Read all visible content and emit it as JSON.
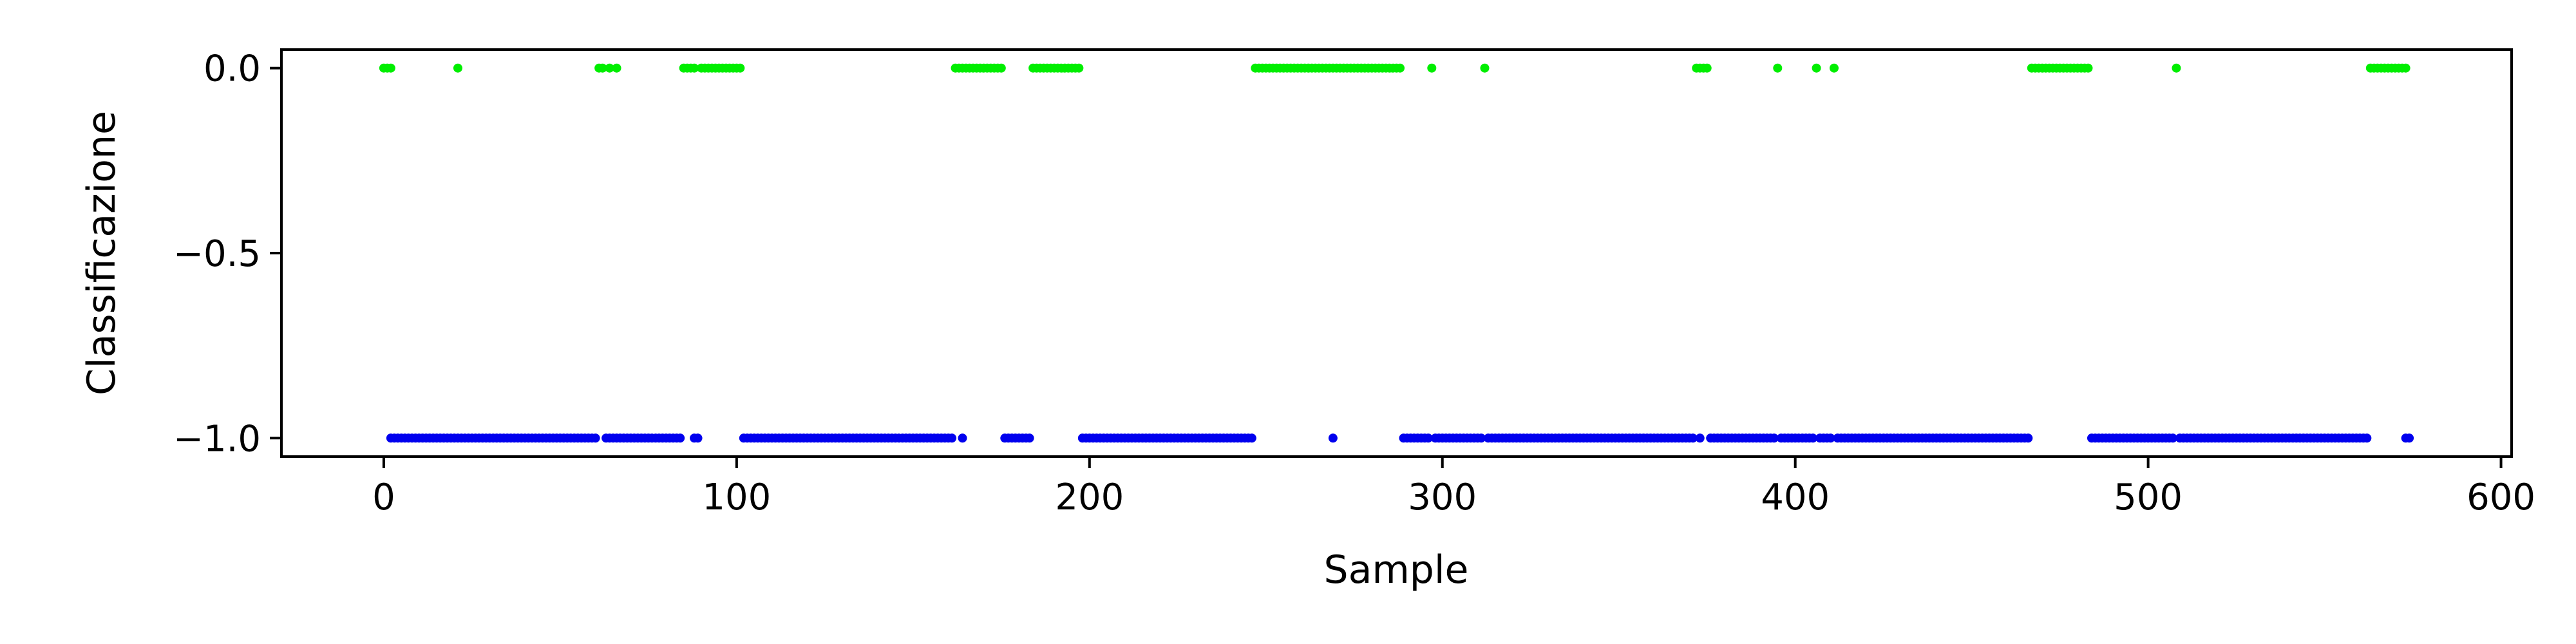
{
  "chart_data": {
    "type": "scatter",
    "title": "",
    "xlabel": "Sample",
    "ylabel": "Classificazione",
    "xlim": [
      -29,
      603
    ],
    "ylim": [
      -1.05,
      0.05
    ],
    "xticks": [
      0,
      100,
      200,
      300,
      400,
      500,
      600
    ],
    "xtick_labels": [
      "0",
      "100",
      "200",
      "300",
      "400",
      "500",
      "600"
    ],
    "yticks": [
      0.0,
      -0.5,
      -1.0
    ],
    "ytick_labels": [
      "0.0",
      "−0.5",
      "−1.0"
    ],
    "grid": false,
    "legend": "none",
    "series": [
      {
        "color": "#00ee00",
        "y": 0.0,
        "x": [
          0,
          1,
          2,
          21,
          61,
          62,
          64,
          66,
          85,
          86,
          87,
          88,
          90,
          91,
          92,
          93,
          94,
          95,
          96,
          97,
          98,
          99,
          100,
          101,
          162,
          163,
          164,
          165,
          166,
          167,
          168,
          169,
          170,
          171,
          172,
          173,
          174,
          175,
          184,
          185,
          186,
          187,
          188,
          189,
          190,
          191,
          192,
          193,
          194,
          195,
          196,
          197,
          247,
          248,
          249,
          250,
          251,
          252,
          253,
          254,
          255,
          256,
          257,
          258,
          259,
          260,
          261,
          262,
          263,
          264,
          265,
          266,
          267,
          268,
          269,
          270,
          271,
          272,
          273,
          274,
          275,
          276,
          277,
          278,
          279,
          280,
          281,
          282,
          283,
          284,
          285,
          286,
          287,
          288,
          297,
          312,
          372,
          373,
          374,
          375,
          395,
          406,
          411,
          467,
          468,
          469,
          470,
          471,
          472,
          473,
          474,
          475,
          476,
          477,
          478,
          479,
          480,
          481,
          482,
          483,
          508,
          563,
          564,
          565,
          566,
          567,
          568,
          569,
          570,
          571,
          572,
          573
        ]
      },
      {
        "color": "#0000ee",
        "y": -1.0,
        "segments": [
          [
            2,
            60
          ],
          [
            63,
            84
          ],
          [
            88,
            89
          ],
          [
            102,
            161
          ],
          [
            164,
            164
          ],
          [
            176,
            183
          ],
          [
            198,
            246
          ],
          [
            269,
            269
          ],
          [
            289,
            296
          ],
          [
            298,
            311
          ],
          [
            313,
            371
          ],
          [
            373,
            373
          ],
          [
            376,
            394
          ],
          [
            396,
            405
          ],
          [
            407,
            410
          ],
          [
            412,
            466
          ],
          [
            484,
            507
          ],
          [
            509,
            562
          ],
          [
            573,
            574
          ]
        ]
      }
    ]
  }
}
